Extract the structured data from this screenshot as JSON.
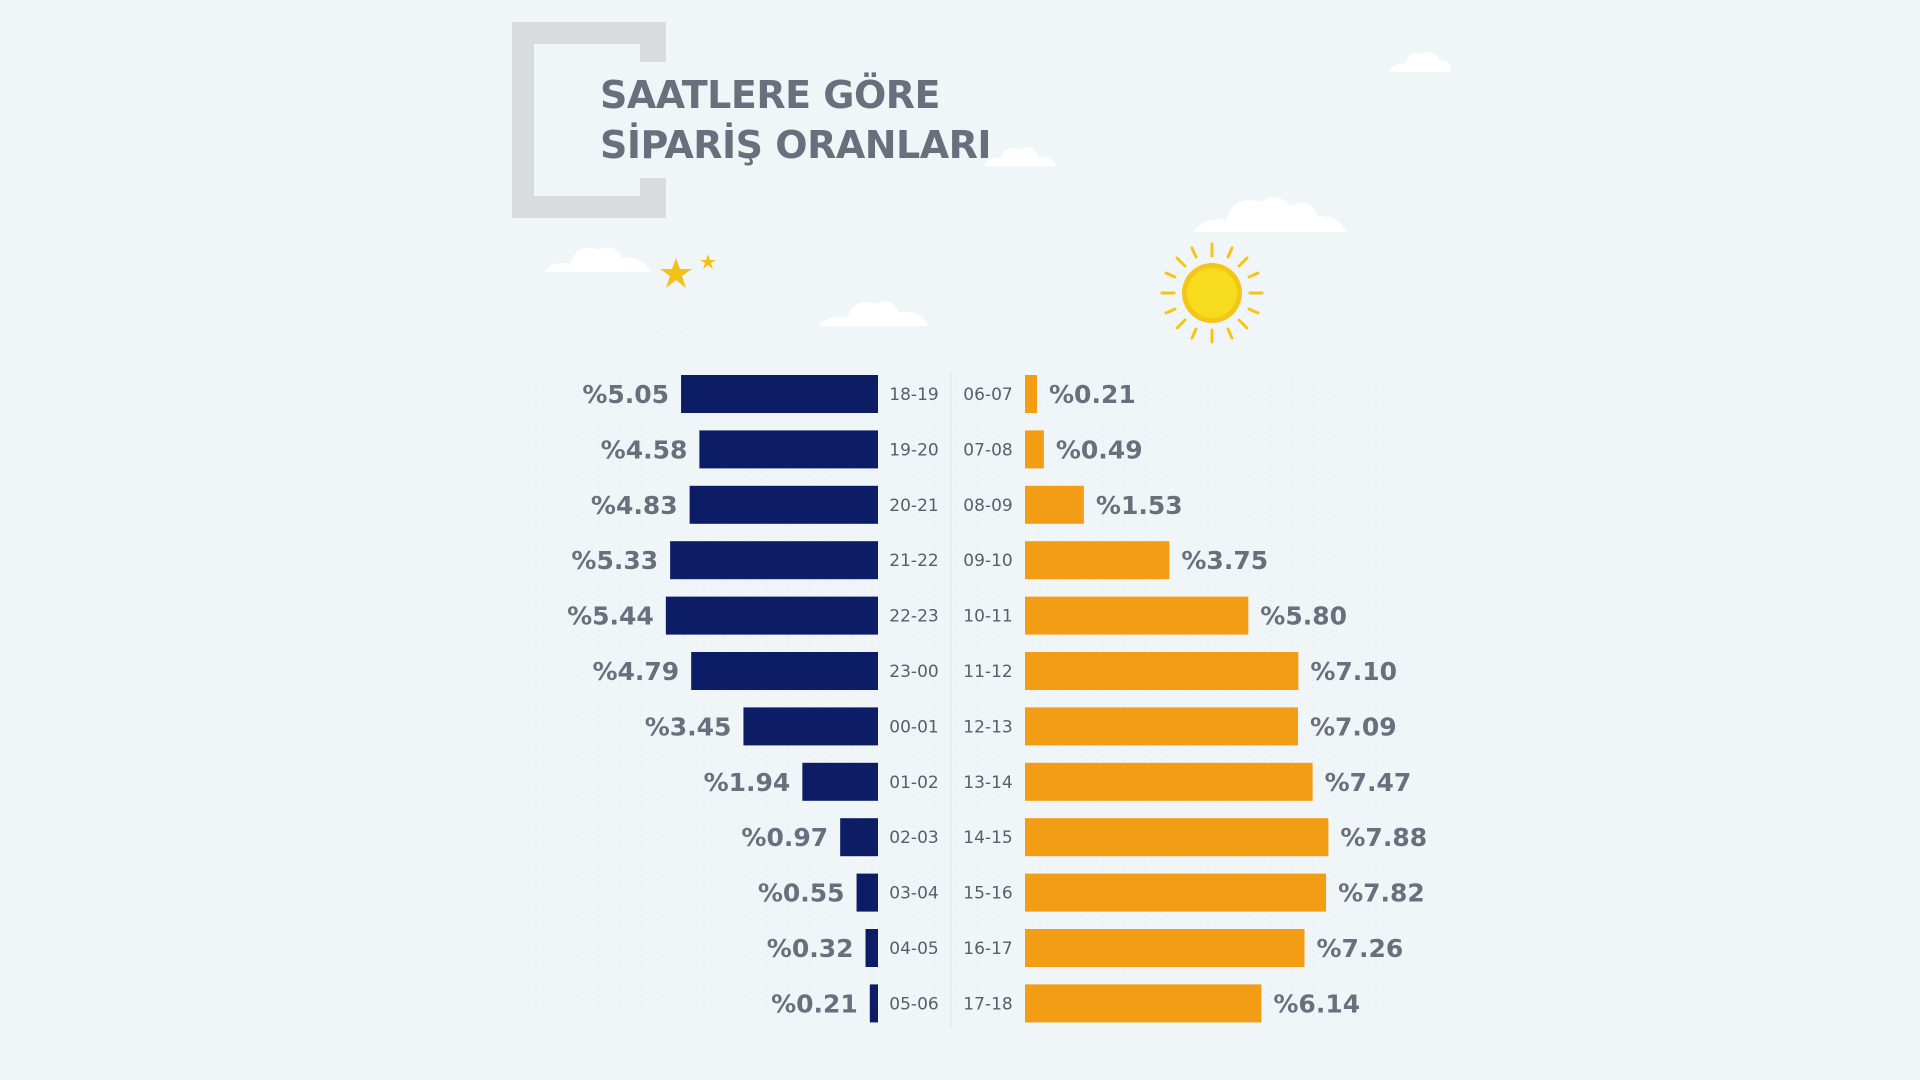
{
  "title": {
    "line1": "SAATLERE GÖRE",
    "line2": "SİPARİŞ ORANLARI"
  },
  "icons": {
    "night": "crescent-moon-with-stars-icon",
    "day": "sun-icon"
  },
  "colors": {
    "night_bar": "#0c1d66",
    "day_bar": "#f29d13",
    "value_text": "#6b6f7d",
    "hour_text": "#5a5e6b",
    "background": "#f0f5f7",
    "bracket": "#d8dcdf"
  },
  "chart_data": [
    {
      "type": "bar",
      "orientation": "horizontal",
      "direction": "leftward",
      "series_side": "night",
      "categories": [
        "18-19",
        "19-20",
        "20-21",
        "21-22",
        "22-23",
        "23-00",
        "00-01",
        "01-02",
        "02-03",
        "03-04",
        "04-05",
        "05-06"
      ],
      "values": [
        5.05,
        4.58,
        4.83,
        5.33,
        5.44,
        4.79,
        3.45,
        1.94,
        0.97,
        0.55,
        0.32,
        0.21
      ],
      "labels": [
        "%5.05",
        "%4.58",
        "%4.83",
        "%5.33",
        "%5.44",
        "%4.79",
        "%3.45",
        "%1.94",
        "%0.97",
        "%0.55",
        "%0.32",
        "%0.21"
      ]
    },
    {
      "type": "bar",
      "orientation": "horizontal",
      "direction": "rightward",
      "series_side": "day",
      "categories": [
        "06-07",
        "07-08",
        "08-09",
        "09-10",
        "10-11",
        "11-12",
        "12-13",
        "13-14",
        "14-15",
        "15-16",
        "16-17",
        "17-18"
      ],
      "values": [
        0.21,
        0.49,
        1.53,
        3.75,
        5.8,
        7.1,
        7.09,
        7.47,
        7.88,
        7.82,
        7.26,
        6.14
      ],
      "labels": [
        "%0.21",
        "%0.49",
        "%1.53",
        "%3.75",
        "%5.80",
        "%7.10",
        "%7.09",
        "%7.47",
        "%7.88",
        "%7.82",
        "%7.26",
        "%6.14"
      ]
    }
  ]
}
